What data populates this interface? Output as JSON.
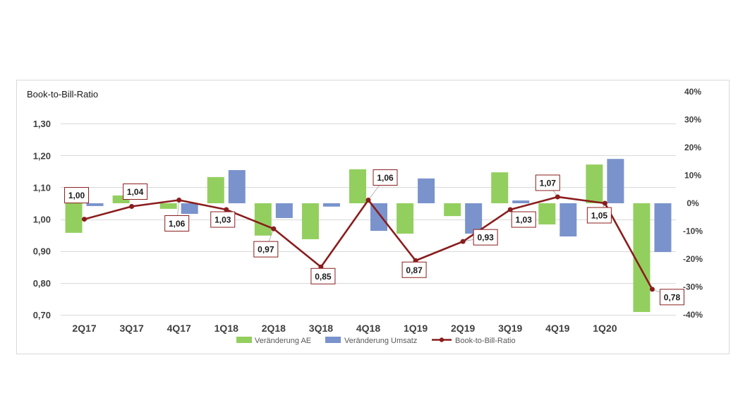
{
  "chart_data": {
    "type": "bar",
    "ylabel_left": "Book-to-Bill-Ratio",
    "categories": [
      "2Q17",
      "3Q17",
      "4Q17",
      "1Q18",
      "2Q18",
      "3Q18",
      "4Q18",
      "1Q19",
      "2Q19",
      "3Q19",
      "4Q19",
      "1Q20",
      ""
    ],
    "series": [
      {
        "name": "Veränderung AE",
        "type": "bar",
        "axis": "right",
        "color": "#93cf5f",
        "values": [
          -10.6,
          2.8,
          -2.0,
          9.4,
          -11.6,
          -12.9,
          12.2,
          -10.9,
          -4.6,
          11.1,
          -7.6,
          13.9,
          -39.0
        ]
      },
      {
        "name": "Veränderung Umsatz",
        "type": "bar",
        "axis": "right",
        "color": "#7a93cc",
        "values": [
          -1.0,
          0.0,
          -3.8,
          11.9,
          -5.3,
          -1.2,
          -9.9,
          8.9,
          -10.9,
          1.0,
          -11.9,
          15.9,
          -17.5
        ]
      },
      {
        "name": "Book-to-Bill-Ratio",
        "type": "line",
        "axis": "left",
        "color": "#8a1d1d",
        "values": [
          1.0,
          1.04,
          1.06,
          1.03,
          0.97,
          0.85,
          1.06,
          0.87,
          0.93,
          1.03,
          1.07,
          1.05,
          0.78
        ],
        "labels": [
          "1,00",
          "1,04",
          "1,06",
          "1,03",
          "0,97",
          "0,85",
          "1,06",
          "0,87",
          "0,93",
          "1,03",
          "1,07",
          "1,05",
          "0,78"
        ]
      }
    ],
    "ylim_left": [
      0.7,
      1.4
    ],
    "yticks_left": [
      {
        "value": 0.7,
        "label": "0,70"
      },
      {
        "value": 0.8,
        "label": "0,80"
      },
      {
        "value": 0.9,
        "label": "0,90"
      },
      {
        "value": 1.0,
        "label": "1,00"
      },
      {
        "value": 1.1,
        "label": "1,10"
      },
      {
        "value": 1.2,
        "label": "1,20"
      },
      {
        "value": 1.3,
        "label": "1,30"
      }
    ],
    "ylim_right": [
      -40,
      40
    ],
    "yticks_right": [
      {
        "value": -40,
        "label": "-40%"
      },
      {
        "value": -30,
        "label": "-30%"
      },
      {
        "value": -20,
        "label": "-20%"
      },
      {
        "value": -10,
        "label": "-10%"
      },
      {
        "value": 0,
        "label": "0%"
      },
      {
        "value": 10,
        "label": "10%"
      },
      {
        "value": 20,
        "label": "20%"
      },
      {
        "value": 30,
        "label": "30%"
      },
      {
        "value": 40,
        "label": "40%"
      }
    ],
    "grid": true,
    "legend": "bottom"
  }
}
